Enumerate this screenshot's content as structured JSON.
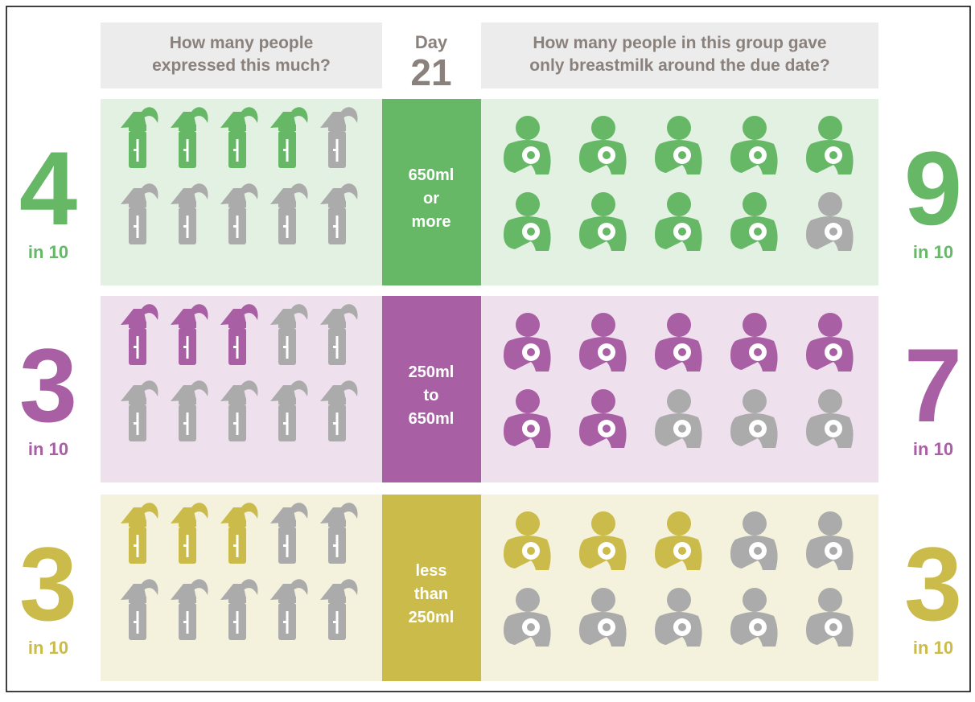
{
  "header": {
    "left": [
      "How many people",
      "expressed this much?"
    ],
    "day": "Day",
    "day_number": "21",
    "right": [
      "How many people in this group gave",
      "only breastmilk around the due date?"
    ]
  },
  "rows": [
    {
      "color": "#66b867",
      "background": "#e2f1e1",
      "label": [
        "650ml",
        "or",
        "more"
      ],
      "expressed": {
        "value": 4,
        "total": 10,
        "total_label": "in 10"
      },
      "breastmilk": {
        "value": 9,
        "total": 10,
        "total_label": "in 10"
      }
    },
    {
      "color": "#a95fa4",
      "background": "#efe0ee",
      "label": [
        "250ml",
        "to",
        "650ml"
      ],
      "expressed": {
        "value": 3,
        "total": 10,
        "total_label": "in 10"
      },
      "breastmilk": {
        "value": 7,
        "total": 10,
        "total_label": "in 10"
      }
    },
    {
      "color": "#cbbb4a",
      "background": "#f4f1dc",
      "label": [
        "less",
        "than",
        "250ml"
      ],
      "expressed": {
        "value": 3,
        "total": 10,
        "total_label": "in 10"
      },
      "breastmilk": {
        "value": 3,
        "total": 10,
        "total_label": "in 10"
      }
    }
  ],
  "inactive_color": "#ababab"
}
